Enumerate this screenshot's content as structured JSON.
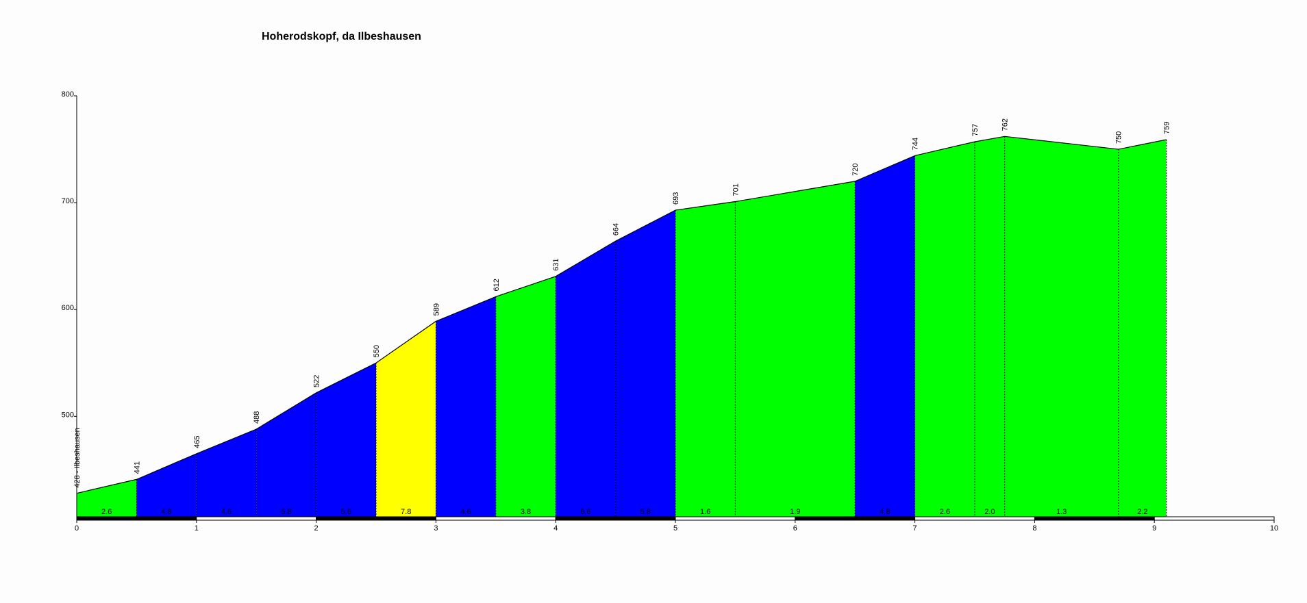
{
  "chart_data": {
    "type": "elevation-profile",
    "title": "Hoherodskopf, da Ilbeshausen",
    "x": [
      0,
      0.5,
      1.0,
      1.5,
      2.0,
      2.5,
      3.0,
      3.5,
      4.0,
      4.5,
      5.0,
      5.5,
      6.5,
      7.0,
      7.5,
      7.75,
      8.7,
      9.1
    ],
    "values": [
      428,
      441,
      465,
      488,
      522,
      550,
      589,
      612,
      631,
      664,
      693,
      701,
      720,
      744,
      757,
      762,
      750,
      759
    ],
    "value_labels": [
      "428 - Ilbeshausen",
      "441",
      "465",
      "488",
      "522",
      "550",
      "589",
      "612",
      "631",
      "664",
      "693",
      "701",
      "720",
      "744",
      "757",
      "762",
      "750",
      "759"
    ],
    "grade_labels": [
      "2.6",
      "4.8",
      "4.6",
      "6.8",
      "5.6",
      "7.8",
      "4.6",
      "3.8",
      "6.6",
      "5.8",
      "1.6",
      "1.9",
      "4.8",
      "2.6",
      "2.0",
      "1.3",
      "2.2"
    ],
    "colors": [
      "#00ff00",
      "#0000ff",
      "#0000ff",
      "#0000ff",
      "#0000ff",
      "#ffff00",
      "#0000ff",
      "#00ff00",
      "#0000ff",
      "#0000ff",
      "#00ff00",
      "#00ff00",
      "#0000ff",
      "#00ff00",
      "#00ff00",
      "#00ff00",
      "#00ff00"
    ],
    "xlim": [
      0,
      10
    ],
    "xticks": [
      0,
      1,
      2,
      3,
      4,
      5,
      6,
      7,
      8,
      9,
      10
    ],
    "ylim": [
      406,
      800
    ],
    "yticks": [
      500,
      600,
      700,
      800
    ]
  }
}
